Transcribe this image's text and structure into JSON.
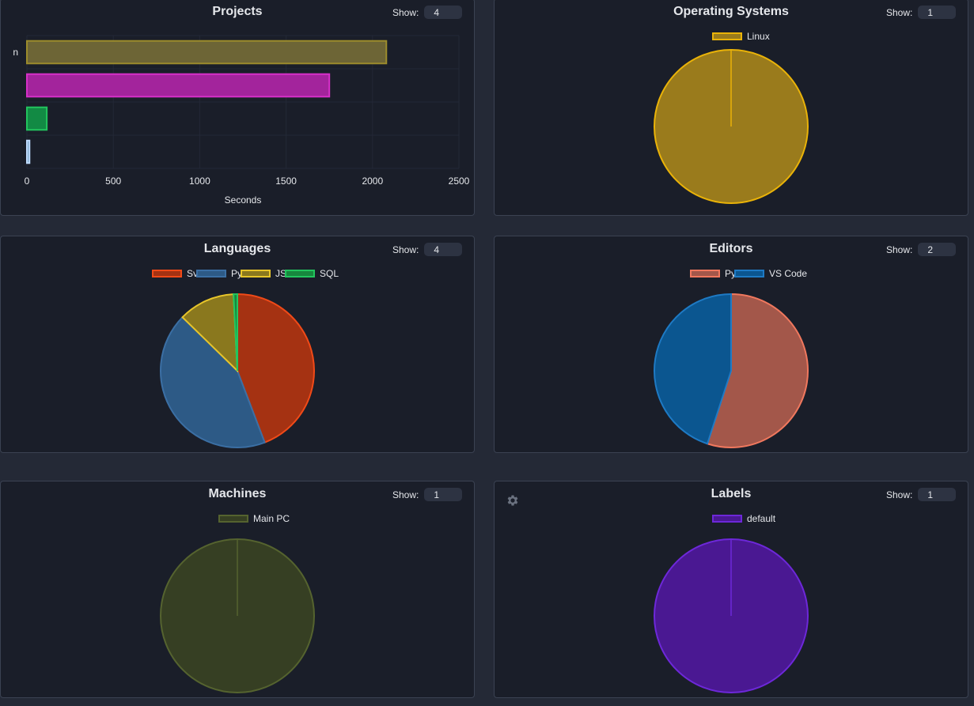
{
  "projects_card": {
    "title": "Projects",
    "show_label": "Show:",
    "show_value": "4",
    "chart_data": {
      "type": "bar",
      "orientation": "horizontal",
      "categories": [
        "n",
        "",
        "",
        ""
      ],
      "values": [
        2080,
        1750,
        115,
        15
      ],
      "colors": [
        "#6d6536",
        "#a3249c",
        "#128a44",
        "#7fa9c9"
      ],
      "border_colors": [
        "#9c8c2c",
        "#d630c8",
        "#22c55e",
        "#bfdbfe"
      ],
      "xlim": [
        0,
        2500
      ],
      "x_ticks": [
        "0",
        "500",
        "1000",
        "1500",
        "2000",
        "2500"
      ],
      "xlabel": "Seconds",
      "grid": true
    }
  },
  "os_card": {
    "title": "Operating Systems",
    "show_label": "Show:",
    "show_value": "1",
    "chart_data": {
      "type": "pie",
      "labels": [
        "Linux"
      ],
      "values": [
        100
      ],
      "colors": [
        "#9a7b1c"
      ],
      "border_colors": [
        "#eab308"
      ]
    }
  },
  "languages_card": {
    "title": "Languages",
    "show_label": "Show:",
    "show_value": "4",
    "chart_data": {
      "type": "pie",
      "labels": [
        "Svelte",
        "Python",
        "JSON",
        "SQL"
      ],
      "values": [
        44.2,
        43.1,
        11.9,
        0.8
      ],
      "colors": [
        "#a53212",
        "#2d5a86",
        "#8a781e",
        "#17883e"
      ],
      "border_colors": [
        "#f04a18",
        "#3b6fa4",
        "#e7c52a",
        "#22c55e"
      ]
    }
  },
  "editors_card": {
    "title": "Editors",
    "show_label": "Show:",
    "show_value": "2",
    "chart_data": {
      "type": "pie",
      "labels": [
        "Python",
        "VS Code"
      ],
      "values": [
        55,
        45
      ],
      "colors": [
        "#a3574a",
        "#0b5690"
      ],
      "border_colors": [
        "#f0785e",
        "#1e7ac4"
      ]
    }
  },
  "machines_card": {
    "title": "Machines",
    "show_label": "Show:",
    "show_value": "1",
    "chart_data": {
      "type": "pie",
      "labels": [
        "Main PC"
      ],
      "values": [
        100
      ],
      "colors": [
        "#363f23"
      ],
      "border_colors": [
        "#55632f"
      ]
    }
  },
  "labels_card": {
    "title": "Labels",
    "show_label": "Show:",
    "show_value": "1",
    "settings_icon": "gear-icon",
    "chart_data": {
      "type": "pie",
      "labels": [
        "default"
      ],
      "values": [
        100
      ],
      "colors": [
        "#4a1892"
      ],
      "border_colors": [
        "#6d28d9"
      ]
    }
  }
}
